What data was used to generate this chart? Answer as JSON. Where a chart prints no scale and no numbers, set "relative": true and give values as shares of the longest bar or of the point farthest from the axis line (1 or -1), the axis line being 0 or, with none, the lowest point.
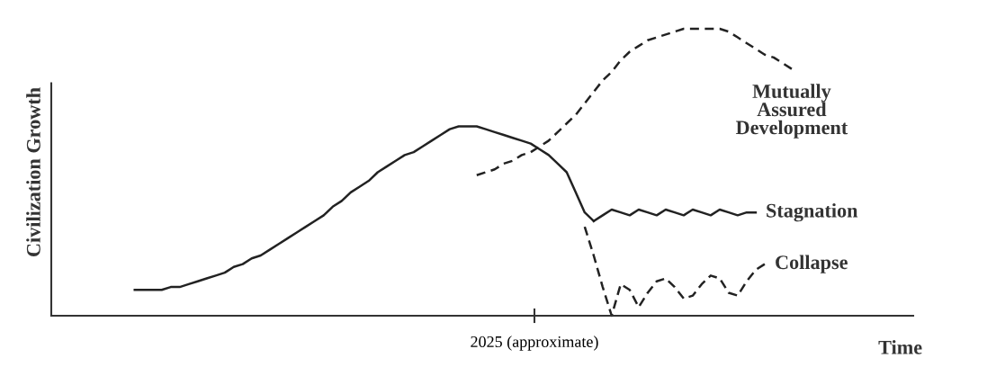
{
  "chart_data": {
    "type": "line",
    "relative": true,
    "xlabel": "Time",
    "ylabel": "Civilization Growth",
    "annotations": [
      "2025 (approximate)"
    ],
    "categories": [
      null,
      null,
      null,
      null,
      null,
      null,
      null,
      null,
      null,
      null,
      null,
      null,
      null,
      null,
      null,
      null,
      null,
      null,
      null,
      null,
      null,
      null,
      null,
      null,
      null,
      null,
      null,
      null,
      null,
      null,
      null,
      null,
      null,
      null,
      null,
      null,
      null,
      null,
      null,
      null,
      null,
      null,
      null,
      null,
      null,
      null,
      null,
      null,
      null,
      null,
      null,
      null,
      null,
      null,
      null,
      null,
      null,
      null,
      null,
      null,
      null,
      null,
      null,
      null,
      null,
      null,
      null,
      null,
      null,
      null,
      null,
      null,
      null,
      null
    ],
    "series": [
      {
        "color": "#222222",
        "line_style": "solid",
        "values": [
          0.09,
          0.09,
          0.09,
          0.09,
          0.1,
          0.1,
          0.11,
          0.12,
          0.13,
          0.14,
          0.15,
          0.17,
          0.18,
          0.2,
          0.21,
          0.23,
          0.25,
          0.27,
          0.29,
          0.31,
          0.33,
          0.35,
          0.38,
          0.4,
          0.43,
          0.45,
          0.47,
          0.5,
          0.52,
          0.54,
          0.56,
          0.57,
          0.59,
          0.61,
          0.63,
          0.65,
          0.66,
          0.66,
          0.66,
          0.65,
          0.64,
          0.63,
          0.62,
          0.61,
          0.6,
          0.58,
          0.56,
          0.53,
          0.5,
          0.43,
          0.36,
          0.33,
          null,
          null,
          null,
          null,
          null,
          null,
          null,
          null,
          null,
          null,
          null,
          null,
          null,
          null,
          null,
          null,
          null,
          null,
          null,
          null,
          null,
          null
        ]
      },
      {
        "name": "Mutually\nAssured\nDevelopment",
        "color": "#222222",
        "line_style": "dashed",
        "values": [
          null,
          null,
          null,
          null,
          null,
          null,
          null,
          null,
          null,
          null,
          null,
          null,
          null,
          null,
          null,
          null,
          null,
          null,
          null,
          null,
          null,
          null,
          null,
          null,
          null,
          null,
          null,
          null,
          null,
          null,
          null,
          null,
          null,
          null,
          null,
          null,
          null,
          null,
          0.49,
          0.5,
          0.51,
          0.53,
          0.54,
          0.56,
          0.57,
          0.59,
          0.61,
          0.64,
          0.67,
          0.7,
          0.74,
          0.78,
          0.82,
          0.85,
          0.89,
          0.92,
          0.94,
          0.96,
          0.97,
          0.98,
          0.99,
          1.0,
          1.0,
          1.0,
          1.0,
          1.0,
          0.99,
          0.97,
          0.95,
          0.93,
          0.91,
          0.9,
          0.88,
          0.86
        ]
      },
      {
        "name": "Stagnation",
        "color": "#222222",
        "line_style": "solid",
        "values": [
          null,
          null,
          null,
          null,
          null,
          null,
          null,
          null,
          null,
          null,
          null,
          null,
          null,
          null,
          null,
          null,
          null,
          null,
          null,
          null,
          null,
          null,
          null,
          null,
          null,
          null,
          null,
          null,
          null,
          null,
          null,
          null,
          null,
          null,
          null,
          null,
          null,
          null,
          null,
          null,
          null,
          null,
          null,
          null,
          null,
          null,
          null,
          null,
          null,
          null,
          null,
          0.33,
          0.35,
          0.37,
          0.36,
          0.35,
          0.37,
          0.36,
          0.35,
          0.37,
          0.36,
          0.35,
          0.37,
          0.36,
          0.35,
          0.37,
          0.36,
          0.35,
          0.36,
          0.36,
          null,
          null,
          null,
          null
        ]
      },
      {
        "name": "Collapse",
        "color": "#222222",
        "line_style": "dashed",
        "values": [
          null,
          null,
          null,
          null,
          null,
          null,
          null,
          null,
          null,
          null,
          null,
          null,
          null,
          null,
          null,
          null,
          null,
          null,
          null,
          null,
          null,
          null,
          null,
          null,
          null,
          null,
          null,
          null,
          null,
          null,
          null,
          null,
          null,
          null,
          null,
          null,
          null,
          null,
          null,
          null,
          null,
          null,
          null,
          null,
          null,
          null,
          null,
          null,
          null,
          null,
          0.31,
          0.21,
          0.1,
          0.0,
          0.11,
          0.09,
          0.03,
          0.08,
          0.12,
          0.13,
          0.1,
          0.06,
          0.07,
          0.11,
          0.14,
          0.13,
          0.08,
          0.07,
          0.12,
          0.16,
          0.18,
          null,
          null,
          null
        ]
      }
    ]
  }
}
